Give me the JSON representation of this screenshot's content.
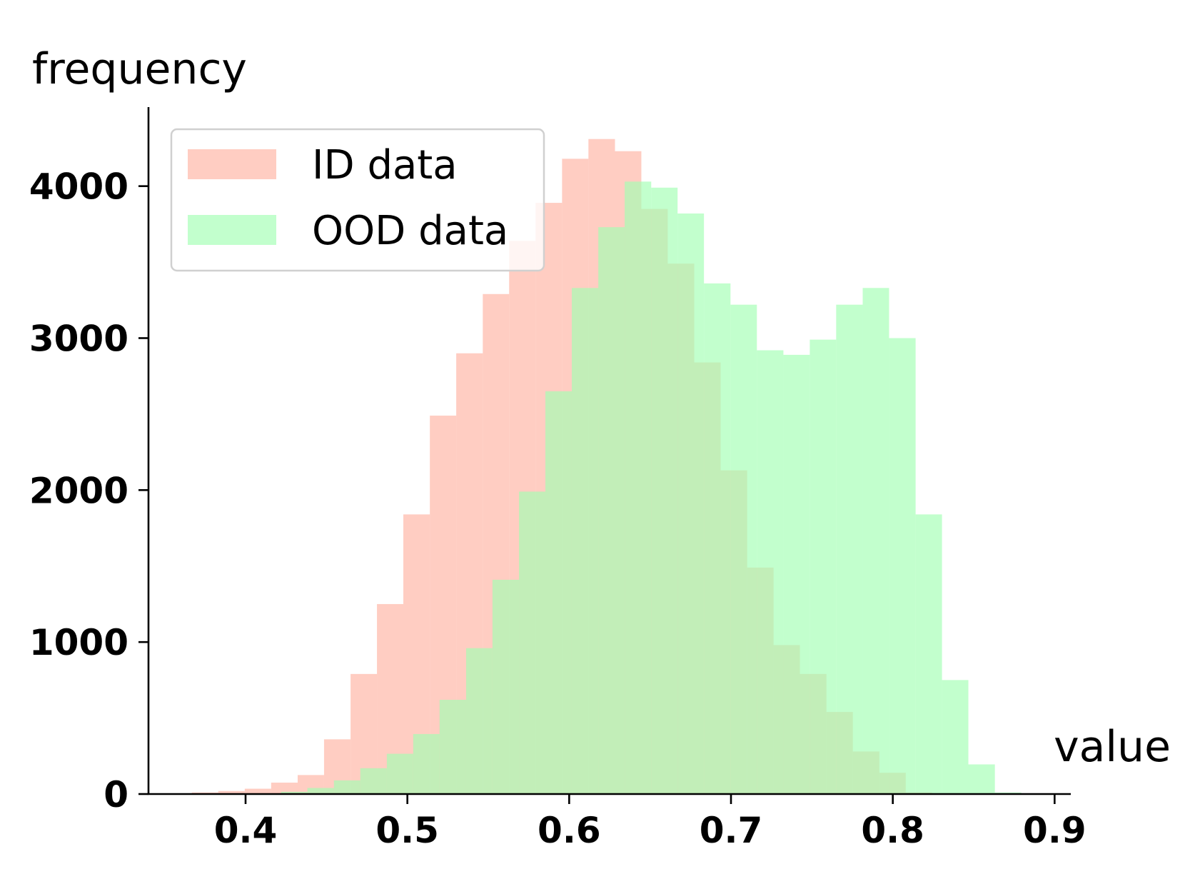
{
  "chart_data": {
    "type": "bar",
    "subtype": "overlaid-histogram",
    "title": "",
    "xlabel": "value",
    "ylabel": "frequency",
    "xlim": [
      0.34,
      0.91
    ],
    "ylim": [
      0,
      4520
    ],
    "x_ticks": [
      0.4,
      0.5,
      0.6,
      0.7,
      0.8,
      0.9
    ],
    "x_tick_labels": [
      "0.4",
      "0.5",
      "0.6",
      "0.7",
      "0.8",
      "0.9"
    ],
    "y_ticks": [
      0,
      1000,
      2000,
      3000,
      4000
    ],
    "y_tick_labels": [
      "0",
      "1000",
      "2000",
      "3000",
      "4000"
    ],
    "grid": false,
    "legend": {
      "position": "upper-left"
    },
    "series": [
      {
        "name": "ID data",
        "color": "#ffb2a1",
        "opacity": 0.65,
        "bin_edges": [
          0.3668,
          0.3831,
          0.3995,
          0.4158,
          0.4322,
          0.4485,
          0.4649,
          0.4812,
          0.4975,
          0.5139,
          0.5302,
          0.5466,
          0.5629,
          0.5792,
          0.5956,
          0.6119,
          0.6283,
          0.6446,
          0.6609,
          0.6773,
          0.6936,
          0.71,
          0.7263,
          0.7426,
          0.759,
          0.7753,
          0.7917,
          0.808,
          0.8243,
          0.8407,
          0.857
        ],
        "counts": [
          10,
          20,
          35,
          75,
          125,
          360,
          790,
          1250,
          1840,
          2490,
          2900,
          3290,
          3640,
          3890,
          4180,
          4310,
          4230,
          3850,
          3490,
          2840,
          2130,
          1490,
          980,
          790,
          540,
          280,
          140,
          10,
          5,
          0
        ]
      },
      {
        "name": "OOD data",
        "color": "#a1ffb2",
        "opacity": 0.65,
        "bin_edges": [
          0.4219,
          0.4382,
          0.4546,
          0.4709,
          0.4873,
          0.5036,
          0.5199,
          0.5363,
          0.5526,
          0.569,
          0.5853,
          0.6016,
          0.618,
          0.6343,
          0.6507,
          0.667,
          0.6833,
          0.6997,
          0.716,
          0.7324,
          0.7487,
          0.765,
          0.7814,
          0.7977,
          0.8141,
          0.8304,
          0.8467,
          0.8631,
          0.8794
        ],
        "counts": [
          15,
          40,
          90,
          170,
          265,
          395,
          620,
          960,
          1410,
          1990,
          2650,
          3330,
          3730,
          4030,
          3990,
          3820,
          3360,
          3220,
          2920,
          2890,
          2990,
          3220,
          3330,
          3000,
          1840,
          750,
          195,
          10
        ]
      }
    ]
  }
}
